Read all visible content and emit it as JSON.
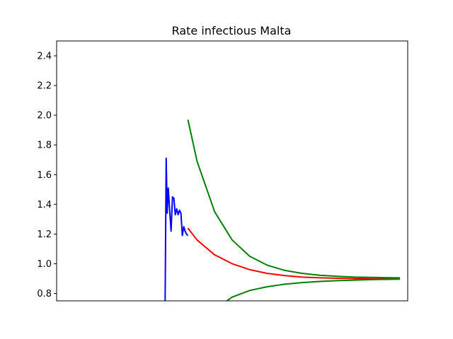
{
  "chart_data": {
    "type": "line",
    "title": "Rate infectious Malta",
    "xlabel": "",
    "ylabel": "",
    "xlim": [
      0,
      100
    ],
    "ylim": [
      0.75,
      2.5
    ],
    "yticks": [
      0.8,
      1.0,
      1.2,
      1.4,
      1.6,
      1.8,
      2.0,
      2.2,
      2.4
    ],
    "xticks_visible": false,
    "grid": false,
    "legend": "none",
    "series": [
      {
        "color": "#0000ff",
        "x": [
          30.9,
          31.2,
          31.5,
          31.8,
          32.2,
          32.6,
          33.0,
          33.4,
          33.8,
          34.2,
          34.6,
          35.0,
          35.4,
          35.8,
          36.2,
          36.6,
          37.0,
          37.4
        ],
        "y": [
          0.75,
          1.71,
          1.34,
          1.51,
          1.36,
          1.22,
          1.45,
          1.44,
          1.33,
          1.37,
          1.33,
          1.36,
          1.34,
          1.19,
          1.25,
          1.22,
          1.2,
          1.19
        ]
      },
      {
        "color": "#ff0000",
        "x": [
          37.4,
          40,
          45,
          50,
          55,
          60,
          65,
          70,
          75,
          80,
          85,
          90,
          95,
          97.8
        ],
        "y": [
          1.24,
          1.16,
          1.06,
          1.0,
          0.96,
          0.935,
          0.92,
          0.91,
          0.905,
          0.902,
          0.9,
          0.899,
          0.899,
          0.899
        ]
      },
      {
        "color": "#008000",
        "x": [
          37.4,
          40,
          45,
          50,
          55,
          60,
          65,
          70,
          75,
          80,
          85,
          90,
          95,
          97.8
        ],
        "y": [
          1.97,
          1.69,
          1.35,
          1.16,
          1.05,
          0.99,
          0.955,
          0.935,
          0.922,
          0.915,
          0.91,
          0.908,
          0.906,
          0.905
        ]
      },
      {
        "color": "#008000",
        "x": [
          48.5,
          50,
          55,
          60,
          65,
          70,
          75,
          80,
          85,
          90,
          95,
          97.8
        ],
        "y": [
          0.75,
          0.775,
          0.82,
          0.845,
          0.862,
          0.873,
          0.881,
          0.886,
          0.89,
          0.893,
          0.895,
          0.896
        ]
      }
    ]
  }
}
